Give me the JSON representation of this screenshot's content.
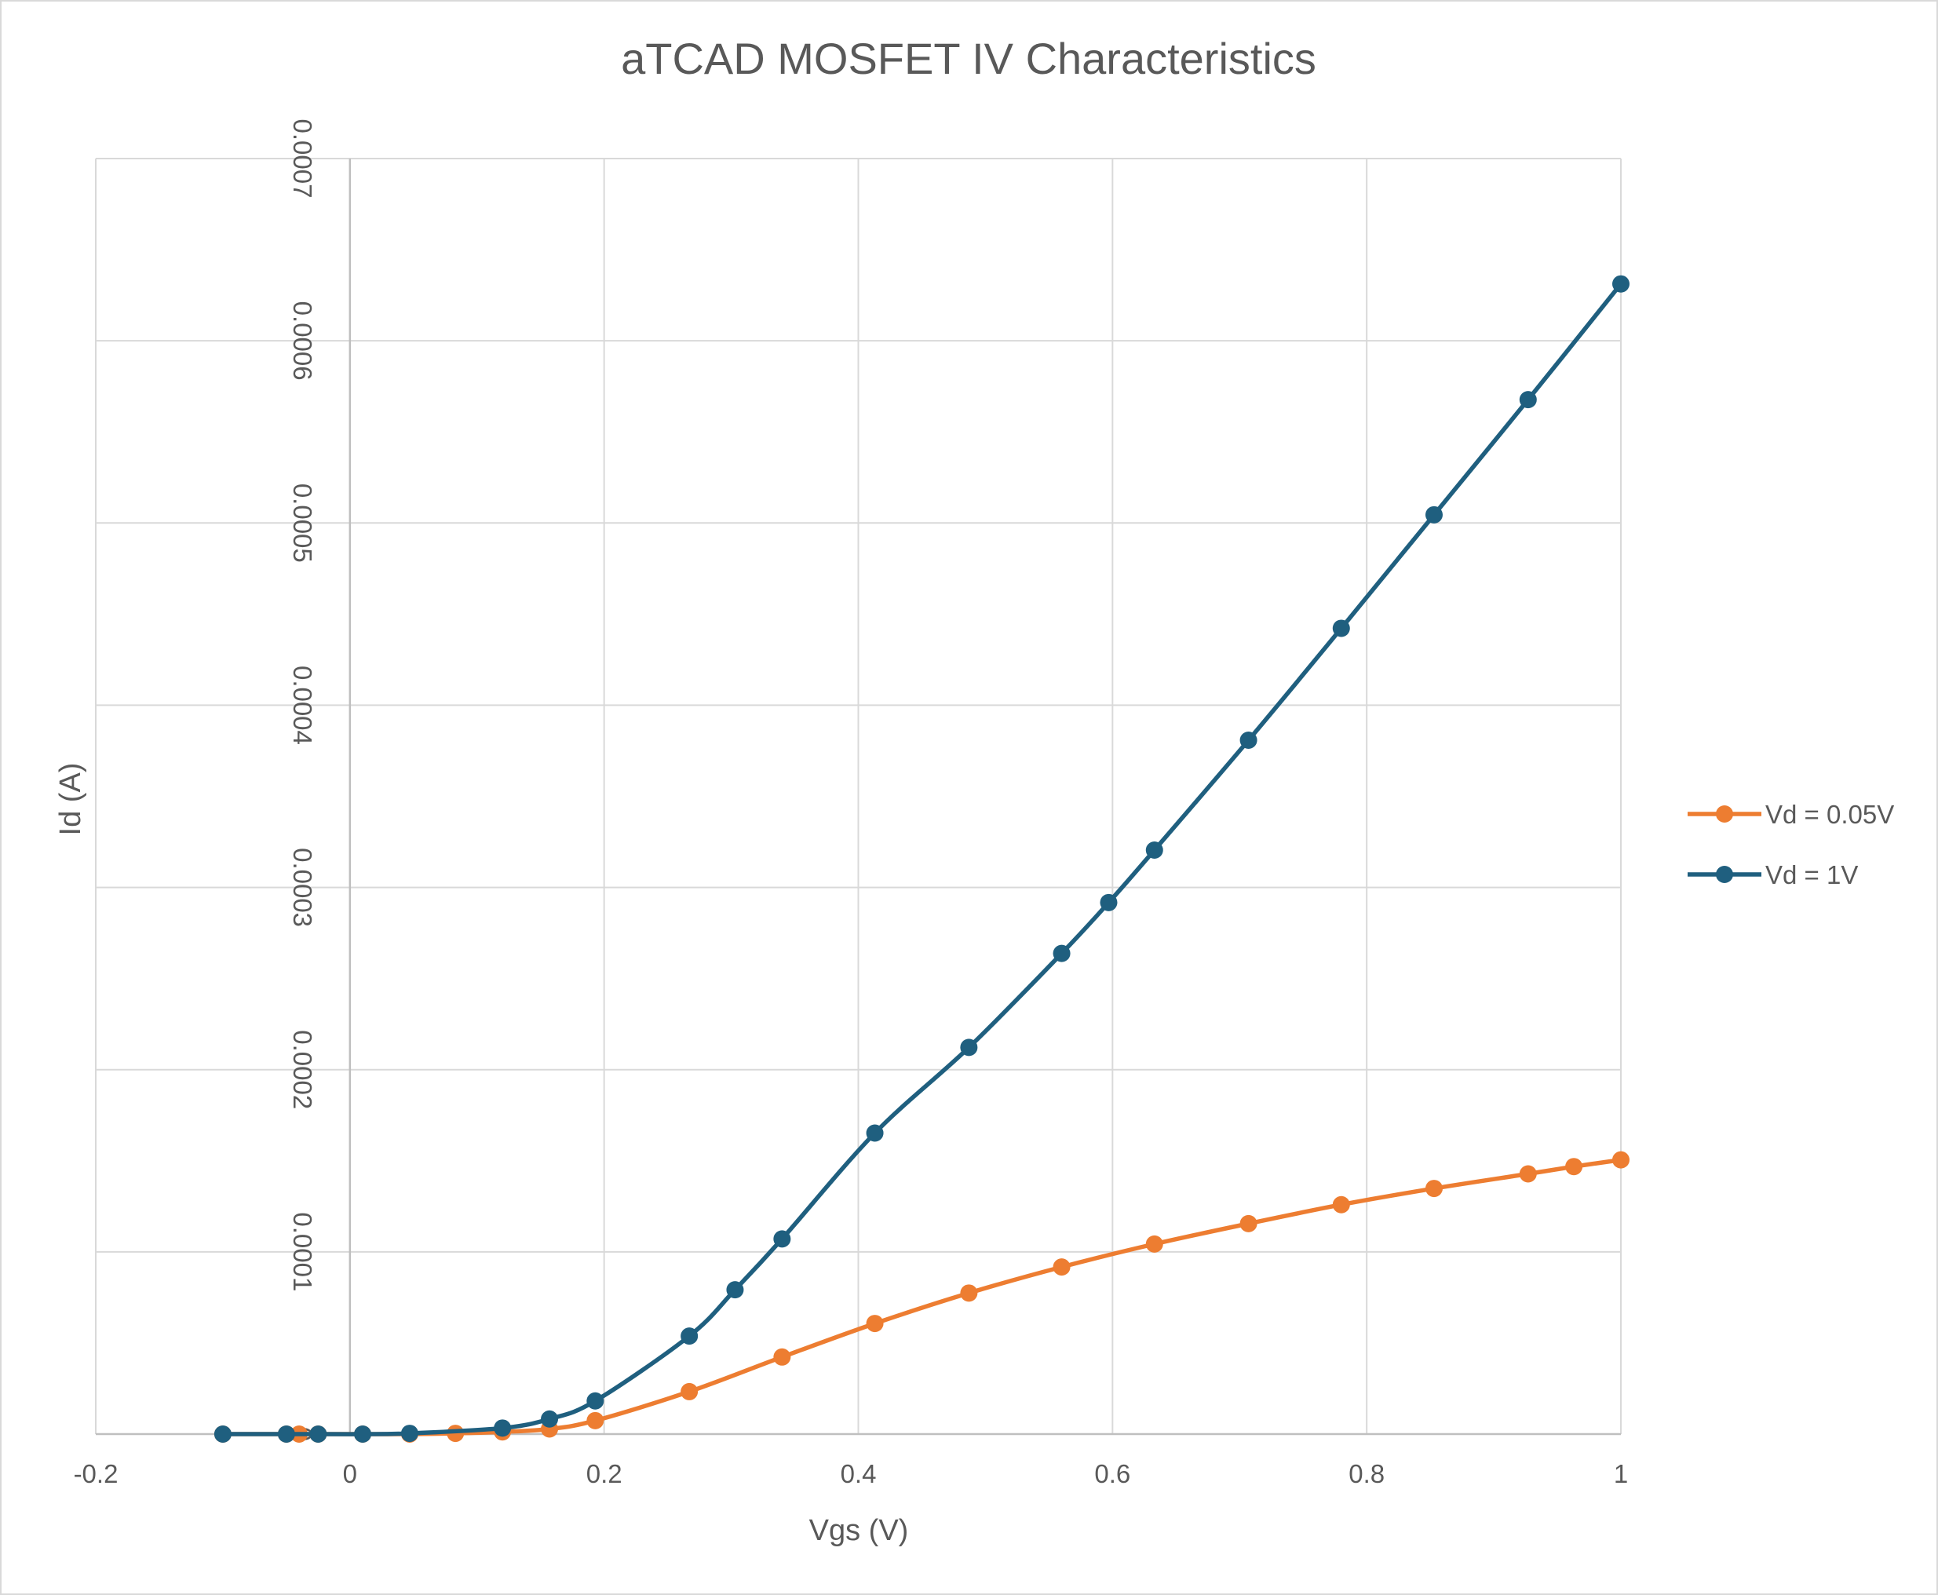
{
  "chart_data": {
    "type": "line",
    "title": "aTCAD MOSFET IV Characteristics",
    "xlabel": "Vgs (V)",
    "ylabel": "Id (A)",
    "xlim": [
      -0.2,
      1
    ],
    "ylim": [
      0,
      0.0007
    ],
    "x_ticks": [
      "-0.2",
      "0",
      "0.2",
      "0.4",
      "0.6",
      "0.8",
      "1"
    ],
    "y_ticks": [
      "0",
      "0.0001",
      "0.0002",
      "0.0003",
      "0.0004",
      "0.0005",
      "0.0006",
      "0.0007"
    ],
    "grid": true,
    "legend_position": "right",
    "series": [
      {
        "name": "Vd = 0.05V",
        "color": "#ed7d31",
        "points": [
          {
            "x": -0.1,
            "y": 0
          },
          {
            "x": -0.05,
            "y": 0
          },
          {
            "x": -0.04,
            "y": 0
          },
          {
            "x": -0.025,
            "y": 0
          },
          {
            "x": 0.01,
            "y": 0
          },
          {
            "x": 0.047,
            "y": 0
          },
          {
            "x": 0.083,
            "y": 4e-07
          },
          {
            "x": 0.12,
            "y": 1.2e-06
          },
          {
            "x": 0.157,
            "y": 2.8e-06
          },
          {
            "x": 0.193,
            "y": 7.4e-06
          },
          {
            "x": 0.267,
            "y": 2.33e-05
          },
          {
            "x": 0.34,
            "y": 4.23e-05
          },
          {
            "x": 0.413,
            "y": 6.07e-05
          },
          {
            "x": 0.487,
            "y": 7.74e-05
          },
          {
            "x": 0.56,
            "y": 9.17e-05
          },
          {
            "x": 0.633,
            "y": 0.0001043
          },
          {
            "x": 0.707,
            "y": 0.0001155
          },
          {
            "x": 0.78,
            "y": 0.0001259
          },
          {
            "x": 0.853,
            "y": 0.0001348
          },
          {
            "x": 0.927,
            "y": 0.0001428
          },
          {
            "x": 0.963,
            "y": 0.0001468
          },
          {
            "x": 1.0,
            "y": 0.0001505
          }
        ]
      },
      {
        "name": "Vd = 1V",
        "color": "#1f5f7f",
        "points": [
          {
            "x": -0.1,
            "y": 0
          },
          {
            "x": -0.05,
            "y": 0
          },
          {
            "x": -0.025,
            "y": 0
          },
          {
            "x": 0.01,
            "y": 0
          },
          {
            "x": 0.047,
            "y": 4e-07
          },
          {
            "x": 0.12,
            "y": 3.3e-06
          },
          {
            "x": 0.157,
            "y": 8.3e-06
          },
          {
            "x": 0.193,
            "y": 1.82e-05
          },
          {
            "x": 0.267,
            "y": 5.38e-05
          },
          {
            "x": 0.303,
            "y": 7.92e-05
          },
          {
            "x": 0.34,
            "y": 0.0001071
          },
          {
            "x": 0.413,
            "y": 0.0001652
          },
          {
            "x": 0.487,
            "y": 0.0002122
          },
          {
            "x": 0.56,
            "y": 0.0002638
          },
          {
            "x": 0.597,
            "y": 0.0002917
          },
          {
            "x": 0.633,
            "y": 0.0003205
          },
          {
            "x": 0.707,
            "y": 0.0003808
          },
          {
            "x": 0.78,
            "y": 0.0004422
          },
          {
            "x": 0.853,
            "y": 0.0005045
          },
          {
            "x": 0.927,
            "y": 0.0005677
          },
          {
            "x": 1.0,
            "y": 0.0006312
          }
        ]
      }
    ]
  }
}
